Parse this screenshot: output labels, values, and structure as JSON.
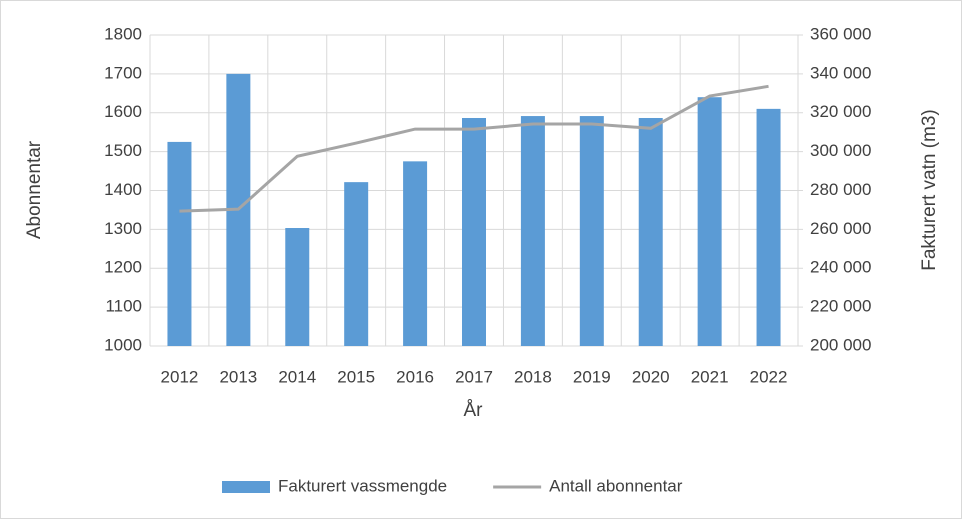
{
  "chart_data": {
    "type": "bar_line",
    "categories": [
      "2012",
      "2013",
      "2014",
      "2015",
      "2016",
      "2017",
      "2018",
      "2019",
      "2020",
      "2021",
      "2022"
    ],
    "series": [
      {
        "name": "Fakturert vassmengde",
        "type": "bar",
        "axis": "y2",
        "color": "#5b9bd5",
        "values": [
          305000,
          340000,
          260700,
          284300,
          295000,
          317300,
          318300,
          318300,
          317300,
          328000,
          322000
        ]
      },
      {
        "name": "Antall abonnentar",
        "type": "line",
        "axis": "y",
        "color": "#a5a5a5",
        "values": [
          1347,
          1352,
          1488,
          1522,
          1558,
          1558,
          1571,
          1571,
          1560,
          1643,
          1668
        ]
      }
    ],
    "xlabel": "År",
    "ylabel": "Abonnentar",
    "y2label": "Fakturert vatn (m3)",
    "ylim": [
      1000,
      1800
    ],
    "yticks": [
      1000,
      1100,
      1200,
      1300,
      1400,
      1500,
      1600,
      1700,
      1800
    ],
    "y2lim": [
      200000,
      360000
    ],
    "y2ticks": [
      {
        "value": 200000,
        "label": "200 000"
      },
      {
        "value": 220000,
        "label": "220 000"
      },
      {
        "value": 240000,
        "label": "240 000"
      },
      {
        "value": 260000,
        "label": "260 000"
      },
      {
        "value": 280000,
        "label": "280 000"
      },
      {
        "value": 300000,
        "label": "300 000"
      },
      {
        "value": 320000,
        "label": "320 000"
      },
      {
        "value": 340000,
        "label": "340 000"
      },
      {
        "value": 360000,
        "label": "360 000"
      }
    ],
    "grid": true,
    "legend": "bottom"
  }
}
